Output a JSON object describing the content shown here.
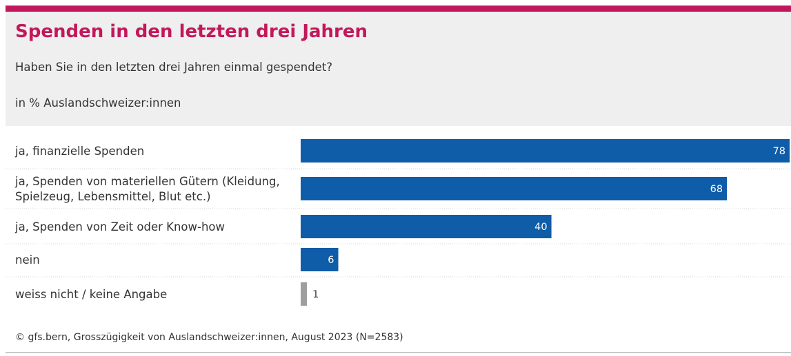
{
  "header": {
    "title": "Spenden in den letzten drei Jahren",
    "subtitle": "Haben Sie in den letzten drei Jahren einmal gespendet?",
    "unit": "in % Auslandschweizer:innen"
  },
  "colors": {
    "accent": "#c2185b",
    "bar_main": "#0f5ca8",
    "bar_other": "#9e9e9e",
    "header_bg": "#efefef"
  },
  "chart_data": {
    "type": "bar",
    "orientation": "horizontal",
    "categories": [
      [
        "ja, finanzielle Spenden"
      ],
      [
        "ja, Spenden von materiellen Gütern (Kleidung,",
        "Spielzeug, Lebensmittel, Blut etc.)"
      ],
      [
        "ja, Spenden von Zeit oder Know-how"
      ],
      [
        "nein"
      ],
      [
        "weiss nicht / keine Angabe"
      ]
    ],
    "values": [
      78,
      68,
      40,
      6,
      1
    ],
    "bar_colors": [
      "#0f5ca8",
      "#0f5ca8",
      "#0f5ca8",
      "#0f5ca8",
      "#9e9e9e"
    ],
    "xlim": [
      0,
      78
    ],
    "grid": false,
    "legend": "none"
  },
  "footer": {
    "source": "© gfs.bern, Grosszügigkeit von Auslandschweizer:innen, August 2023 (N=2583)"
  }
}
